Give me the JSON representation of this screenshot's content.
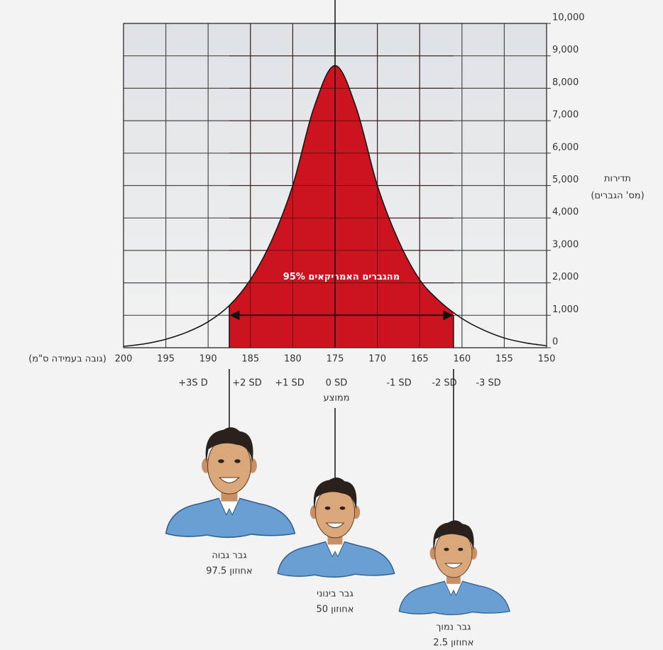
{
  "chart_data": {
    "type": "area",
    "annotation": "95% מהגברים האמריקאים",
    "x_label": "(גובה בעמידה ס\"מ)",
    "y_label_lines": [
      "תדירות",
      "(מס' הגברים)"
    ],
    "x": [
      200,
      197.5,
      195,
      192.5,
      190,
      187.5,
      185,
      182.5,
      180,
      177.5,
      175,
      172.5,
      170,
      167.5,
      165,
      162.5,
      160,
      157.5,
      155,
      152.5,
      150
    ],
    "values": [
      40,
      120,
      260,
      480,
      800,
      1300,
      2100,
      3300,
      5000,
      7400,
      8700,
      7400,
      5000,
      3300,
      2100,
      1400,
      900,
      550,
      300,
      150,
      60
    ],
    "color": "#cc1420",
    "shade_range": [
      187.5,
      161
    ],
    "arrow_level": 1000,
    "xlim": [
      200,
      150
    ],
    "ylim": [
      0,
      10000
    ],
    "xticks": [
      200,
      195,
      190,
      185,
      180,
      175,
      170,
      165,
      160,
      155,
      150
    ],
    "yticks": [
      0,
      {
        "value": 1000,
        "label": "1,000"
      },
      {
        "value": 2000,
        "label": "2,000"
      },
      {
        "value": 3000,
        "label": "3,000"
      },
      {
        "value": 4000,
        "label": "4,000"
      },
      {
        "value": 5000,
        "label": "5,000"
      },
      {
        "value": 6000,
        "label": "6,000"
      },
      {
        "value": 7000,
        "label": "7,000"
      },
      {
        "value": 8000,
        "label": "8,000"
      },
      {
        "value": 9000,
        "label": "9,000"
      },
      {
        "value": 10000,
        "label": "10,000"
      }
    ],
    "grid": true,
    "sd_labels": [
      "+3S D",
      "+2 SD",
      "+1 SD",
      "0 SD",
      "-1 SD",
      "-2 SD",
      "-3 SD"
    ],
    "mean_label": "ממוצע",
    "people": [
      {
        "name": "גבר גבוה",
        "percentile": "אחוזון 97.5"
      },
      {
        "name": "גבר בינוני",
        "percentile": "אחוזון 50"
      },
      {
        "name": "גבר נמוך",
        "percentile": "אחוזון 2.5"
      }
    ]
  }
}
